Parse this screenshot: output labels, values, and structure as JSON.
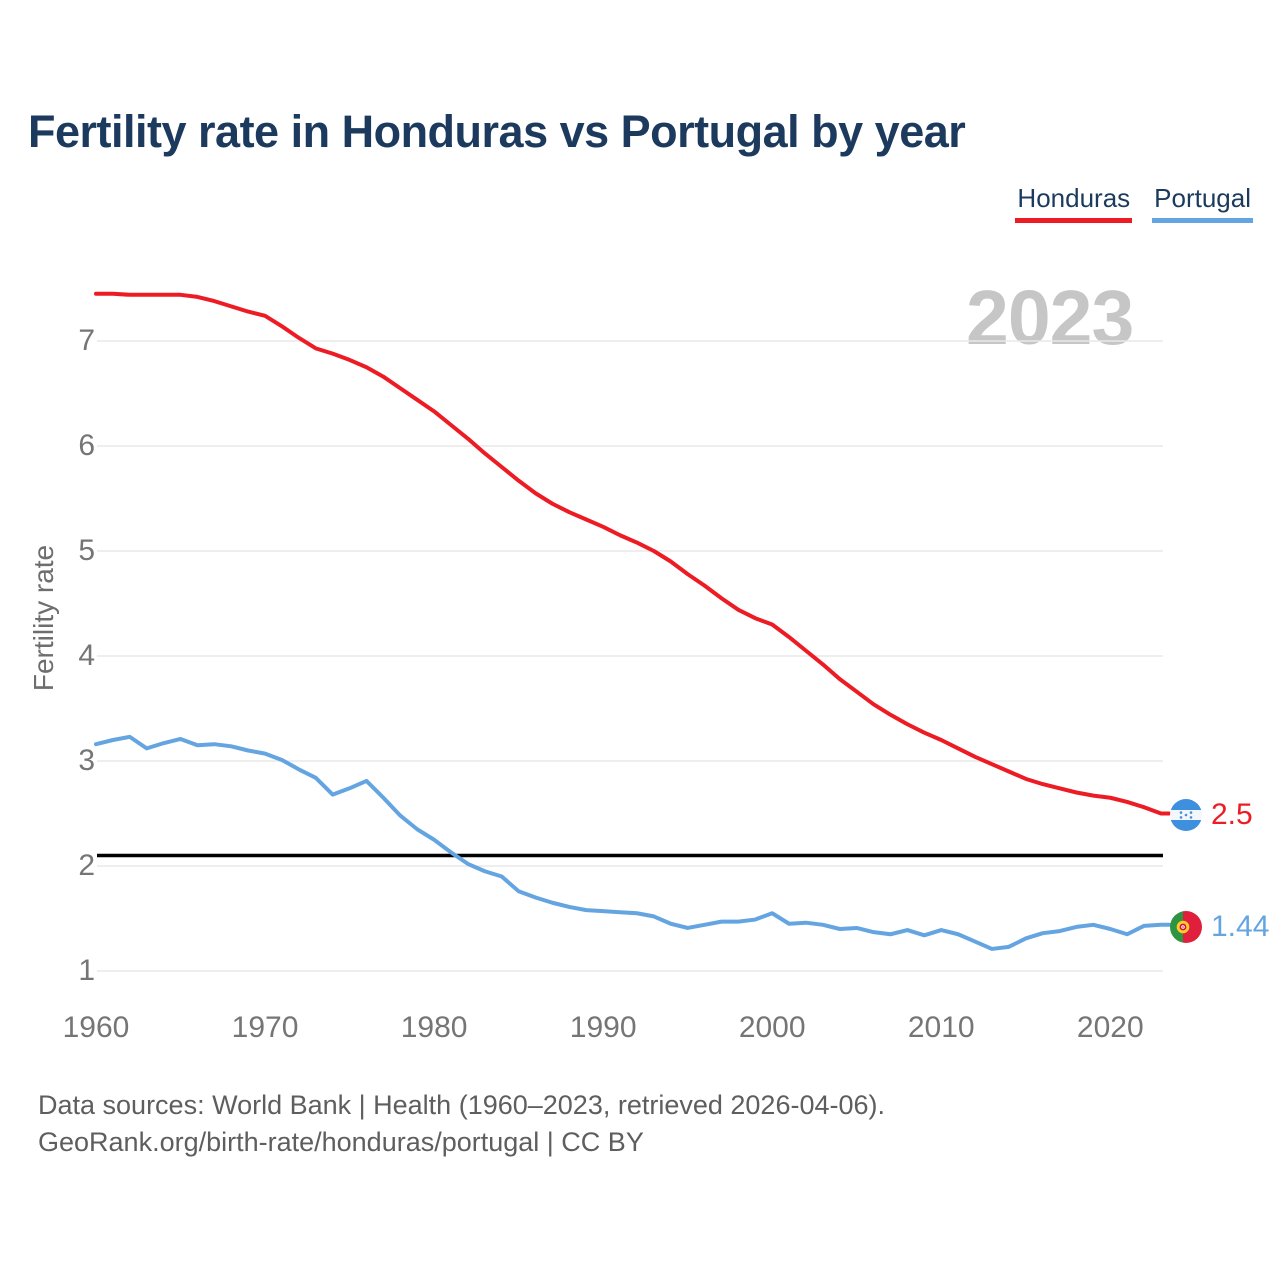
{
  "title": "Fertility rate in Honduras vs Portugal by year",
  "watermark": "2023",
  "legend": {
    "honduras": {
      "label": "Honduras",
      "color": "#ed1c24"
    },
    "portugal": {
      "label": "Portugal",
      "color": "#64a5e1"
    }
  },
  "y_axis": {
    "label": "Fertility rate",
    "ticks": [
      1,
      2,
      3,
      4,
      5,
      6,
      7
    ]
  },
  "x_axis": {
    "ticks": [
      1960,
      1970,
      1980,
      1990,
      2000,
      2010,
      2020
    ]
  },
  "end_labels": {
    "honduras": {
      "value": "2.5",
      "flag": "honduras-flag"
    },
    "portugal": {
      "value": "1.44",
      "flag": "portugal-flag"
    }
  },
  "footer": {
    "line1": "Data sources: World Bank | Health (1960–2023, retrieved 2026-04-06).",
    "line2": "GeoRank.org/birth-rate/honduras/portugal | CC BY"
  },
  "colors": {
    "honduras_line": "#ed1c24",
    "portugal_line": "#64a5e1",
    "reference_line": "#000000",
    "gridline": "#e9e9e9",
    "title_text": "#1c3a5e",
    "tick_text": "#757575",
    "watermark_text": "#c6c6c6"
  },
  "chart_data": {
    "type": "line",
    "title": "Fertility rate in Honduras vs Portugal by year",
    "xlabel": "",
    "ylabel": "Fertility rate",
    "xlim": [
      1960,
      2023
    ],
    "ylim": [
      1,
      7.6
    ],
    "xticks": [
      1960,
      1970,
      1980,
      1990,
      2000,
      2010,
      2020
    ],
    "yticks": [
      1,
      2,
      3,
      4,
      5,
      6,
      7
    ],
    "grid": "horizontal",
    "legend_position": "top-right",
    "reference_line": {
      "value": 2.1,
      "color": "#000000"
    },
    "end_value_labels": {
      "Honduras": 2.5,
      "Portugal": 1.44
    },
    "x": [
      1960,
      1961,
      1962,
      1963,
      1964,
      1965,
      1966,
      1967,
      1968,
      1969,
      1970,
      1971,
      1972,
      1973,
      1974,
      1975,
      1976,
      1977,
      1978,
      1979,
      1980,
      1981,
      1982,
      1983,
      1984,
      1985,
      1986,
      1987,
      1988,
      1989,
      1990,
      1991,
      1992,
      1993,
      1994,
      1995,
      1996,
      1997,
      1998,
      1999,
      2000,
      2001,
      2002,
      2003,
      2004,
      2005,
      2006,
      2007,
      2008,
      2009,
      2010,
      2011,
      2012,
      2013,
      2014,
      2015,
      2016,
      2017,
      2018,
      2019,
      2020,
      2021,
      2022,
      2023
    ],
    "series": [
      {
        "name": "Honduras",
        "color": "#ed1c24",
        "values": [
          7.45,
          7.45,
          7.44,
          7.44,
          7.44,
          7.44,
          7.42,
          7.38,
          7.33,
          7.28,
          7.24,
          7.14,
          7.03,
          6.93,
          6.88,
          6.82,
          6.75,
          6.66,
          6.55,
          6.44,
          6.33,
          6.2,
          6.07,
          5.93,
          5.8,
          5.67,
          5.55,
          5.45,
          5.37,
          5.3,
          5.23,
          5.15,
          5.08,
          5.0,
          4.9,
          4.78,
          4.67,
          4.55,
          4.44,
          4.36,
          4.3,
          4.18,
          4.05,
          3.92,
          3.78,
          3.66,
          3.54,
          3.44,
          3.35,
          3.27,
          3.2,
          3.12,
          3.04,
          2.97,
          2.9,
          2.83,
          2.78,
          2.74,
          2.7,
          2.67,
          2.65,
          2.61,
          2.56,
          2.5
        ]
      },
      {
        "name": "Portugal",
        "color": "#64a5e1",
        "values": [
          3.16,
          3.2,
          3.23,
          3.12,
          3.17,
          3.21,
          3.15,
          3.16,
          3.14,
          3.1,
          3.07,
          3.01,
          2.92,
          2.84,
          2.68,
          2.74,
          2.81,
          2.65,
          2.48,
          2.35,
          2.25,
          2.13,
          2.02,
          1.95,
          1.9,
          1.76,
          1.7,
          1.65,
          1.61,
          1.58,
          1.57,
          1.56,
          1.55,
          1.52,
          1.45,
          1.41,
          1.44,
          1.47,
          1.47,
          1.49,
          1.55,
          1.45,
          1.46,
          1.44,
          1.4,
          1.41,
          1.37,
          1.35,
          1.39,
          1.34,
          1.39,
          1.35,
          1.28,
          1.21,
          1.23,
          1.31,
          1.36,
          1.38,
          1.42,
          1.44,
          1.4,
          1.35,
          1.43,
          1.44
        ]
      }
    ]
  }
}
